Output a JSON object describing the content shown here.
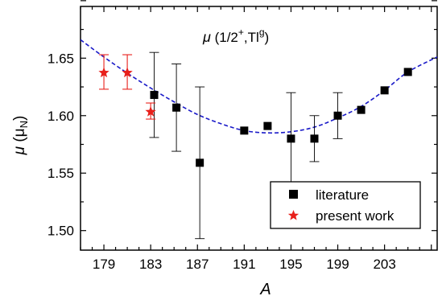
{
  "chart_data": {
    "type": "scatter",
    "annotation": {
      "mu": "μ",
      "text_pre": " (1/2",
      "sup1": "+",
      "text_mid": ",Tl",
      "sup2": "g",
      "text_post": ")"
    },
    "xlabel": "A",
    "ylabel": {
      "mu": "μ",
      "open": " (μ",
      "sub": "N",
      "close": ")"
    },
    "xlim": [
      177,
      207.5
    ],
    "ylim": [
      1.483,
      1.695
    ],
    "xticks": [
      179,
      183,
      187,
      191,
      195,
      199,
      203
    ],
    "xtick_labels": [
      "179",
      "183",
      "187",
      "191",
      "195",
      "199",
      "203"
    ],
    "yticks": [
      1.5,
      1.55,
      1.6,
      1.65
    ],
    "ytick_labels": [
      "1.50",
      "1.55",
      "1.60",
      "1.65"
    ],
    "grid": false,
    "legend_position": "bottom-right",
    "series": [
      {
        "name": "literature",
        "marker": "square",
        "color": "#000000",
        "points": [
          {
            "x": 183.3,
            "y": 1.618,
            "err": 0.037
          },
          {
            "x": 185.2,
            "y": 1.607,
            "err": 0.038
          },
          {
            "x": 187.2,
            "y": 1.559,
            "err": 0.066
          },
          {
            "x": 191.0,
            "y": 1.587,
            "err": 0.0
          },
          {
            "x": 193.0,
            "y": 1.591,
            "err": 0.0
          },
          {
            "x": 195.0,
            "y": 1.58,
            "err": 0.04
          },
          {
            "x": 197.0,
            "y": 1.58,
            "err": 0.02
          },
          {
            "x": 199.0,
            "y": 1.6,
            "err": 0.02
          },
          {
            "x": 201.0,
            "y": 1.605,
            "err": 0.0
          },
          {
            "x": 203.0,
            "y": 1.622,
            "err": 0.0
          },
          {
            "x": 205.0,
            "y": 1.638,
            "err": 0.0
          }
        ]
      },
      {
        "name": "present work",
        "marker": "star",
        "color": "#e8201b",
        "points": [
          {
            "x": 179.0,
            "y": 1.638,
            "err": 0.015
          },
          {
            "x": 181.0,
            "y": 1.638,
            "err": 0.015
          },
          {
            "x": 183.0,
            "y": 1.604,
            "err": 0.007
          }
        ]
      }
    ],
    "fit_curve": {
      "color": "#1a1ac8",
      "style": "dashed",
      "points": [
        [
          177,
          1.666
        ],
        [
          179,
          1.651
        ],
        [
          181,
          1.637
        ],
        [
          183,
          1.624
        ],
        [
          185,
          1.612
        ],
        [
          187,
          1.601
        ],
        [
          189,
          1.593
        ],
        [
          191,
          1.587
        ],
        [
          193,
          1.585
        ],
        [
          195,
          1.586
        ],
        [
          197,
          1.59
        ],
        [
          199,
          1.598
        ],
        [
          201,
          1.608
        ],
        [
          203,
          1.622
        ],
        [
          205,
          1.638
        ],
        [
          207.5,
          1.651
        ]
      ]
    }
  }
}
